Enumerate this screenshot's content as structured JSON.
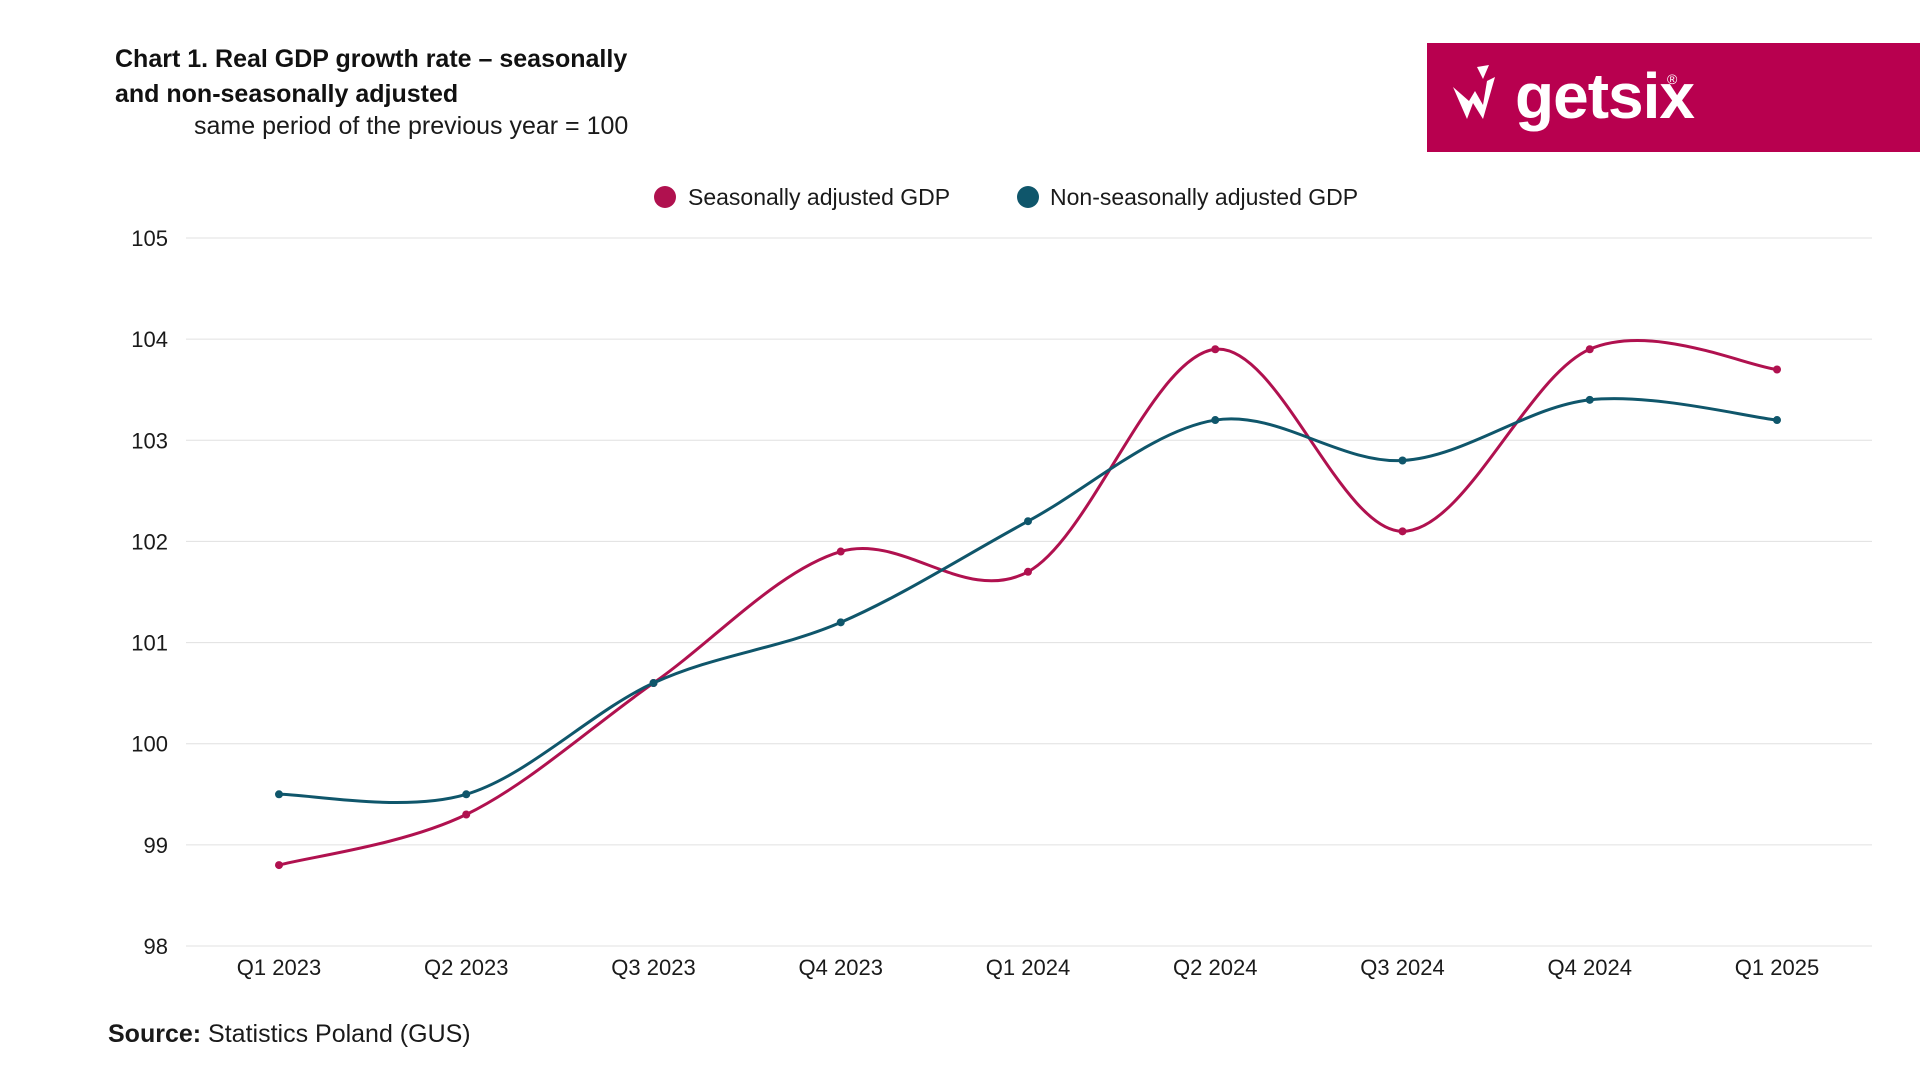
{
  "header": {
    "title_line1": "Chart 1. Real GDP growth rate – seasonally",
    "title_line2": "and non-seasonally adjusted",
    "subtitle": "same period of the previous year = 100"
  },
  "logo": {
    "text": "getsix",
    "registered": "®",
    "background": "#b8004f"
  },
  "source": {
    "label": "Source:",
    "text": "Statistics Poland (GUS)"
  },
  "chart_data": {
    "type": "line",
    "title": "Chart 1. Real GDP growth rate – seasonally and non-seasonally adjusted",
    "subtitle": "same period of the previous year = 100",
    "categories": [
      "Q1 2023",
      "Q2 2023",
      "Q3 2023",
      "Q4 2023",
      "Q1 2024",
      "Q2 2024",
      "Q3 2024",
      "Q4 2024",
      "Q1 2025"
    ],
    "series": [
      {
        "name": "Seasonally adjusted GDP",
        "color": "#b0114f",
        "values": [
          98.8,
          99.3,
          100.6,
          101.9,
          101.7,
          103.9,
          102.1,
          103.9,
          103.7
        ]
      },
      {
        "name": "Non-seasonally adjusted GDP",
        "color": "#0f566b",
        "values": [
          99.5,
          99.5,
          100.6,
          101.2,
          102.2,
          103.2,
          102.8,
          103.4,
          103.2
        ]
      }
    ],
    "yticks": [
      98,
      99,
      100,
      101,
      102,
      103,
      104,
      105
    ],
    "ylim": [
      98,
      105
    ],
    "grid": true,
    "legend": "top-center",
    "smooth": true
  }
}
